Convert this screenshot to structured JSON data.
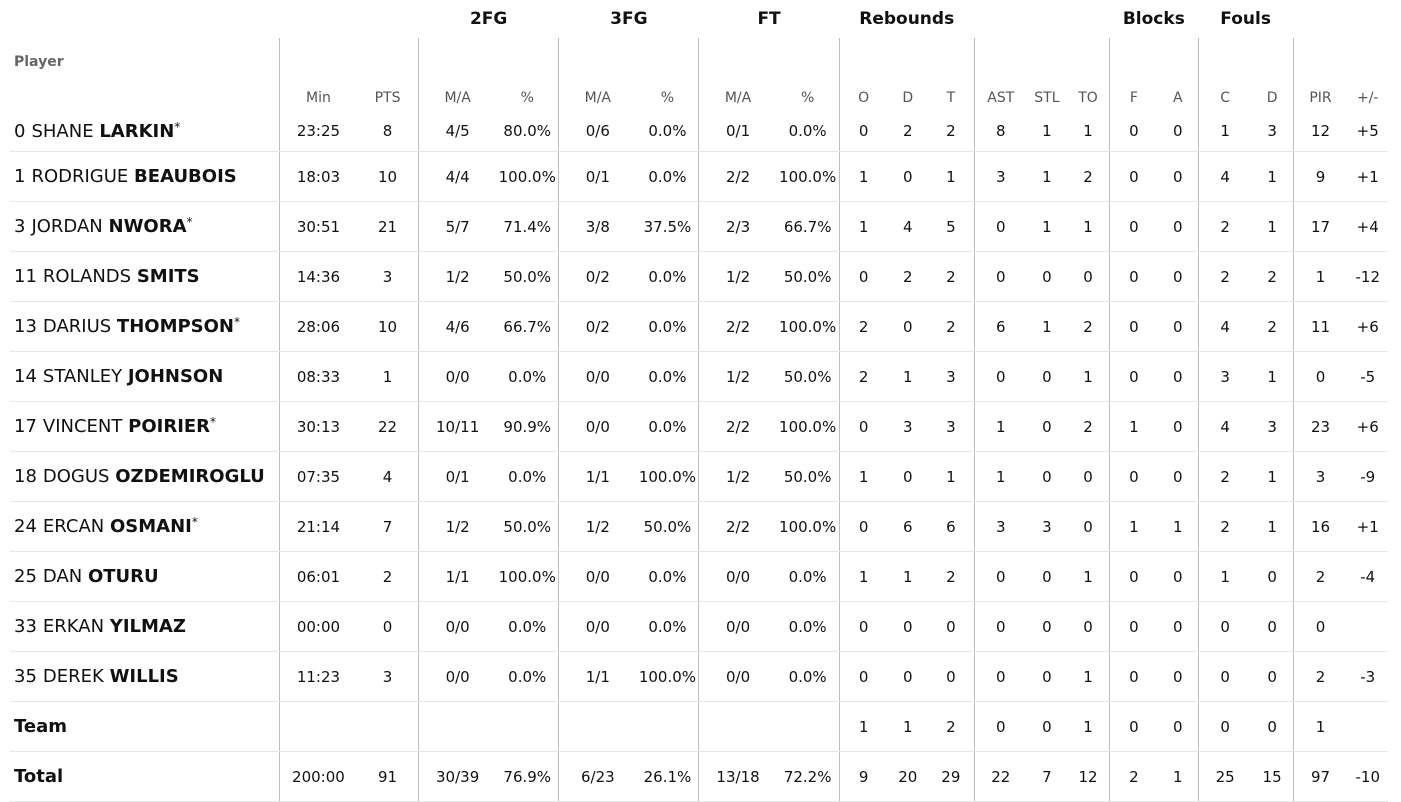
{
  "group_headers": {
    "fg2": "2FG",
    "fg3": "3FG",
    "ft": "FT",
    "rebounds": "Rebounds",
    "blocks": "Blocks",
    "fouls": "Fouls"
  },
  "column_headers": {
    "player": "Player",
    "min": "Min",
    "pts": "PTS",
    "fg2_ma": "M/A",
    "fg2_pct": "%",
    "fg3_ma": "M/A",
    "fg3_pct": "%",
    "ft_ma": "M/A",
    "ft_pct": "%",
    "reb_o": "O",
    "reb_d": "D",
    "reb_t": "T",
    "ast": "AST",
    "stl": "STL",
    "to": "TO",
    "blk_f": "F",
    "blk_a": "A",
    "foul_c": "C",
    "foul_d": "D",
    "pir": "PIR",
    "pm": "+/-"
  },
  "players": [
    {
      "num": "0",
      "first": "SHANE",
      "last": "LARKIN",
      "star": "*",
      "min": "23:25",
      "pts": "8",
      "fg2_ma": "4/5",
      "fg2_pct": "80.0%",
      "fg3_ma": "0/6",
      "fg3_pct": "0.0%",
      "ft_ma": "0/1",
      "ft_pct": "0.0%",
      "reb_o": "0",
      "reb_d": "2",
      "reb_t": "2",
      "ast": "8",
      "stl": "1",
      "to": "1",
      "blk_f": "0",
      "blk_a": "0",
      "foul_c": "1",
      "foul_d": "3",
      "pir": "12",
      "pm": "+5"
    },
    {
      "num": "1",
      "first": "RODRIGUE",
      "last": "BEAUBOIS",
      "star": "",
      "min": "18:03",
      "pts": "10",
      "fg2_ma": "4/4",
      "fg2_pct": "100.0%",
      "fg3_ma": "0/1",
      "fg3_pct": "0.0%",
      "ft_ma": "2/2",
      "ft_pct": "100.0%",
      "reb_o": "1",
      "reb_d": "0",
      "reb_t": "1",
      "ast": "3",
      "stl": "1",
      "to": "2",
      "blk_f": "0",
      "blk_a": "0",
      "foul_c": "4",
      "foul_d": "1",
      "pir": "9",
      "pm": "+1"
    },
    {
      "num": "3",
      "first": "JORDAN",
      "last": "NWORA",
      "star": "*",
      "min": "30:51",
      "pts": "21",
      "fg2_ma": "5/7",
      "fg2_pct": "71.4%",
      "fg3_ma": "3/8",
      "fg3_pct": "37.5%",
      "ft_ma": "2/3",
      "ft_pct": "66.7%",
      "reb_o": "1",
      "reb_d": "4",
      "reb_t": "5",
      "ast": "0",
      "stl": "1",
      "to": "1",
      "blk_f": "0",
      "blk_a": "0",
      "foul_c": "2",
      "foul_d": "1",
      "pir": "17",
      "pm": "+4"
    },
    {
      "num": "11",
      "first": "ROLANDS",
      "last": "SMITS",
      "star": "",
      "min": "14:36",
      "pts": "3",
      "fg2_ma": "1/2",
      "fg2_pct": "50.0%",
      "fg3_ma": "0/2",
      "fg3_pct": "0.0%",
      "ft_ma": "1/2",
      "ft_pct": "50.0%",
      "reb_o": "0",
      "reb_d": "2",
      "reb_t": "2",
      "ast": "0",
      "stl": "0",
      "to": "0",
      "blk_f": "0",
      "blk_a": "0",
      "foul_c": "2",
      "foul_d": "2",
      "pir": "1",
      "pm": "-12"
    },
    {
      "num": "13",
      "first": "DARIUS",
      "last": "THOMPSON",
      "star": "*",
      "min": "28:06",
      "pts": "10",
      "fg2_ma": "4/6",
      "fg2_pct": "66.7%",
      "fg3_ma": "0/2",
      "fg3_pct": "0.0%",
      "ft_ma": "2/2",
      "ft_pct": "100.0%",
      "reb_o": "2",
      "reb_d": "0",
      "reb_t": "2",
      "ast": "6",
      "stl": "1",
      "to": "2",
      "blk_f": "0",
      "blk_a": "0",
      "foul_c": "4",
      "foul_d": "2",
      "pir": "11",
      "pm": "+6"
    },
    {
      "num": "14",
      "first": "STANLEY",
      "last": "JOHNSON",
      "star": "",
      "min": "08:33",
      "pts": "1",
      "fg2_ma": "0/0",
      "fg2_pct": "0.0%",
      "fg3_ma": "0/0",
      "fg3_pct": "0.0%",
      "ft_ma": "1/2",
      "ft_pct": "50.0%",
      "reb_o": "2",
      "reb_d": "1",
      "reb_t": "3",
      "ast": "0",
      "stl": "0",
      "to": "1",
      "blk_f": "0",
      "blk_a": "0",
      "foul_c": "3",
      "foul_d": "1",
      "pir": "0",
      "pm": "-5"
    },
    {
      "num": "17",
      "first": "VINCENT",
      "last": "POIRIER",
      "star": "*",
      "min": "30:13",
      "pts": "22",
      "fg2_ma": "10/11",
      "fg2_pct": "90.9%",
      "fg3_ma": "0/0",
      "fg3_pct": "0.0%",
      "ft_ma": "2/2",
      "ft_pct": "100.0%",
      "reb_o": "0",
      "reb_d": "3",
      "reb_t": "3",
      "ast": "1",
      "stl": "0",
      "to": "2",
      "blk_f": "1",
      "blk_a": "0",
      "foul_c": "4",
      "foul_d": "3",
      "pir": "23",
      "pm": "+6"
    },
    {
      "num": "18",
      "first": "DOGUS",
      "last": "OZDEMIROGLU",
      "star": "",
      "min": "07:35",
      "pts": "4",
      "fg2_ma": "0/1",
      "fg2_pct": "0.0%",
      "fg3_ma": "1/1",
      "fg3_pct": "100.0%",
      "ft_ma": "1/2",
      "ft_pct": "50.0%",
      "reb_o": "1",
      "reb_d": "0",
      "reb_t": "1",
      "ast": "1",
      "stl": "0",
      "to": "0",
      "blk_f": "0",
      "blk_a": "0",
      "foul_c": "2",
      "foul_d": "1",
      "pir": "3",
      "pm": "-9"
    },
    {
      "num": "24",
      "first": "ERCAN",
      "last": "OSMANI",
      "star": "*",
      "min": "21:14",
      "pts": "7",
      "fg2_ma": "1/2",
      "fg2_pct": "50.0%",
      "fg3_ma": "1/2",
      "fg3_pct": "50.0%",
      "ft_ma": "2/2",
      "ft_pct": "100.0%",
      "reb_o": "0",
      "reb_d": "6",
      "reb_t": "6",
      "ast": "3",
      "stl": "3",
      "to": "0",
      "blk_f": "1",
      "blk_a": "1",
      "foul_c": "2",
      "foul_d": "1",
      "pir": "16",
      "pm": "+1"
    },
    {
      "num": "25",
      "first": "DAN",
      "last": "OTURU",
      "star": "",
      "min": "06:01",
      "pts": "2",
      "fg2_ma": "1/1",
      "fg2_pct": "100.0%",
      "fg3_ma": "0/0",
      "fg3_pct": "0.0%",
      "ft_ma": "0/0",
      "ft_pct": "0.0%",
      "reb_o": "1",
      "reb_d": "1",
      "reb_t": "2",
      "ast": "0",
      "stl": "0",
      "to": "1",
      "blk_f": "0",
      "blk_a": "0",
      "foul_c": "1",
      "foul_d": "0",
      "pir": "2",
      "pm": "-4"
    },
    {
      "num": "33",
      "first": "ERKAN",
      "last": "YILMAZ",
      "star": "",
      "min": "00:00",
      "pts": "0",
      "fg2_ma": "0/0",
      "fg2_pct": "0.0%",
      "fg3_ma": "0/0",
      "fg3_pct": "0.0%",
      "ft_ma": "0/0",
      "ft_pct": "0.0%",
      "reb_o": "0",
      "reb_d": "0",
      "reb_t": "0",
      "ast": "0",
      "stl": "0",
      "to": "0",
      "blk_f": "0",
      "blk_a": "0",
      "foul_c": "0",
      "foul_d": "0",
      "pir": "0",
      "pm": ""
    },
    {
      "num": "35",
      "first": "DEREK",
      "last": "WILLIS",
      "star": "",
      "min": "11:23",
      "pts": "3",
      "fg2_ma": "0/0",
      "fg2_pct": "0.0%",
      "fg3_ma": "1/1",
      "fg3_pct": "100.0%",
      "ft_ma": "0/0",
      "ft_pct": "0.0%",
      "reb_o": "0",
      "reb_d": "0",
      "reb_t": "0",
      "ast": "0",
      "stl": "0",
      "to": "1",
      "blk_f": "0",
      "blk_a": "0",
      "foul_c": "0",
      "foul_d": "0",
      "pir": "2",
      "pm": "-3"
    }
  ],
  "team": {
    "label": "Team",
    "min": "",
    "pts": "",
    "fg2_ma": "",
    "fg2_pct": "",
    "fg3_ma": "",
    "fg3_pct": "",
    "ft_ma": "",
    "ft_pct": "",
    "reb_o": "1",
    "reb_d": "1",
    "reb_t": "2",
    "ast": "0",
    "stl": "0",
    "to": "1",
    "blk_f": "0",
    "blk_a": "0",
    "foul_c": "0",
    "foul_d": "0",
    "pir": "1",
    "pm": ""
  },
  "total": {
    "label": "Total",
    "min": "200:00",
    "pts": "91",
    "fg2_ma": "30/39",
    "fg2_pct": "76.9%",
    "fg3_ma": "6/23",
    "fg3_pct": "26.1%",
    "ft_ma": "13/18",
    "ft_pct": "72.2%",
    "reb_o": "9",
    "reb_d": "20",
    "reb_t": "29",
    "ast": "22",
    "stl": "7",
    "to": "12",
    "blk_f": "2",
    "blk_a": "1",
    "foul_c": "25",
    "foul_d": "15",
    "pir": "97",
    "pm": "-10"
  }
}
